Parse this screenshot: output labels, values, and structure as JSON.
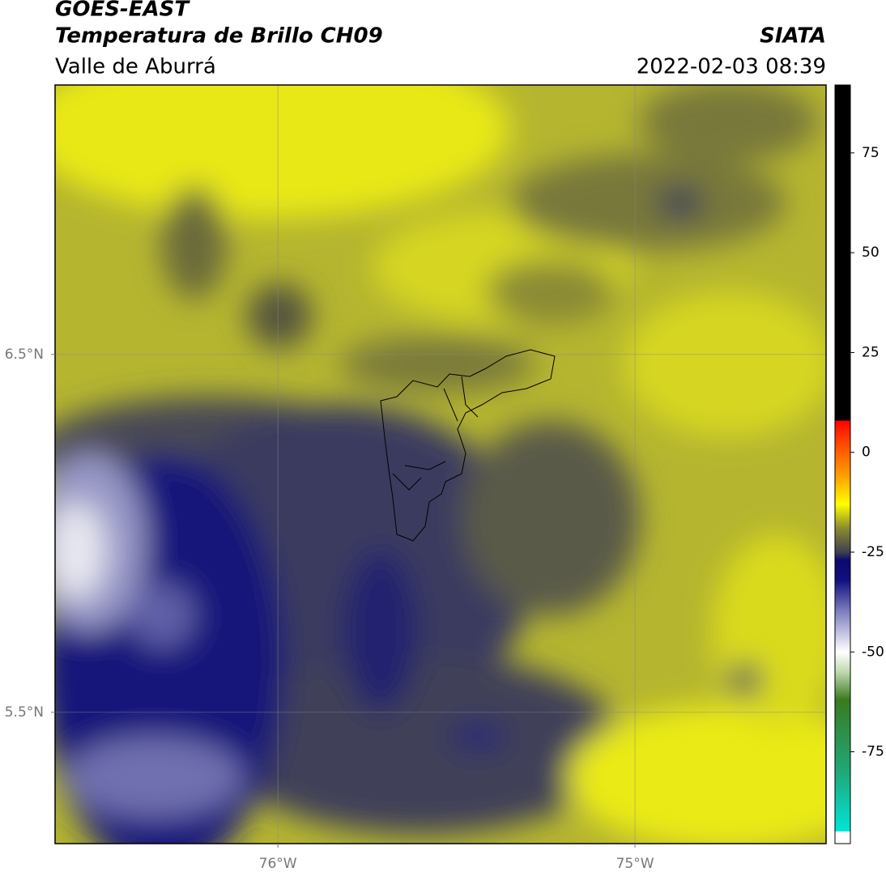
{
  "header": {
    "title": "GOES-EAST",
    "subtitle": "Temperatura de Brillo CH09",
    "region": "Valle de Aburrá",
    "agency": "SIATA",
    "timestamp": "2022-02-03 08:39"
  },
  "map": {
    "xlim": [
      -76.624,
      -74.465
    ],
    "ylim": [
      5.133,
      7.253
    ],
    "xticks": [
      {
        "value": -76,
        "label": "76°W"
      },
      {
        "value": -75,
        "label": "75°W"
      }
    ],
    "yticks": [
      {
        "value": 6.5,
        "label": "6.5°N"
      },
      {
        "value": 5.5,
        "label": "5.5°N"
      }
    ],
    "grid": true
  },
  "colorbar": {
    "lim": [
      -98,
      92
    ],
    "ticks": [
      75,
      50,
      25,
      0,
      -25,
      -50,
      -75
    ],
    "stops": [
      [
        -98,
        "#ffffff"
      ],
      [
        -95,
        "#ffffff"
      ],
      [
        -95,
        "#00e5d8"
      ],
      [
        -80,
        "#20a878"
      ],
      [
        -62,
        "#3a7a20"
      ],
      [
        -55,
        "#c0d8b0"
      ],
      [
        -50,
        "#ffffff"
      ],
      [
        -40,
        "#8080c0"
      ],
      [
        -32,
        "#101080"
      ],
      [
        -27,
        "#0a0a70"
      ],
      [
        -25,
        "#404050"
      ],
      [
        -19,
        "#8a8a30"
      ],
      [
        -13,
        "#ffff00"
      ],
      [
        -6,
        "#ffa000"
      ],
      [
        3,
        "#ff4000"
      ],
      [
        8,
        "#ff0000"
      ],
      [
        8,
        "#000000"
      ],
      [
        92,
        "#000000"
      ]
    ]
  }
}
